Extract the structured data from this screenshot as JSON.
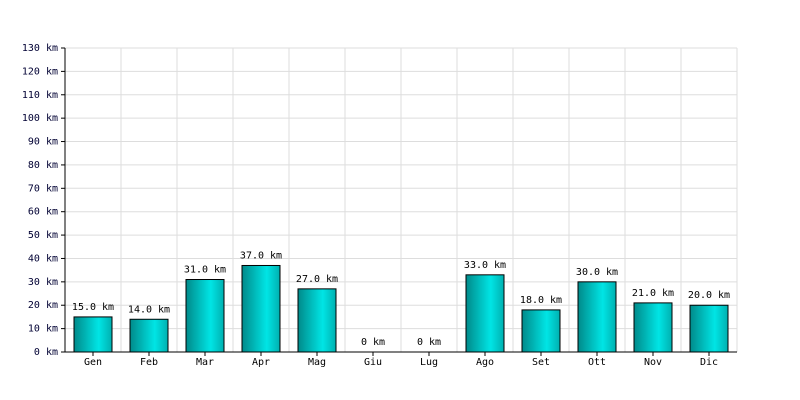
{
  "chart_data": {
    "type": "bar",
    "categories": [
      "Gen",
      "Feb",
      "Mar",
      "Apr",
      "Mag",
      "Giu",
      "Lug",
      "Ago",
      "Set",
      "Ott",
      "Nov",
      "Dic"
    ],
    "values": [
      15,
      14,
      31,
      37,
      27,
      0,
      0,
      33,
      18,
      30,
      21,
      20
    ],
    "value_labels": [
      "15.0 km",
      "14.0 km",
      "31.0 km",
      "37.0 km",
      "27.0 km",
      "0 km",
      "0 km",
      "33.0 km",
      "18.0 km",
      "30.0 km",
      "21.0 km",
      "20.0 km"
    ],
    "color": "#00e5e5",
    "ylim": [
      0,
      130
    ],
    "yticks": [
      {
        "value": 0,
        "label": "0 km"
      },
      {
        "value": 10,
        "label": "10 km"
      },
      {
        "value": 20,
        "label": "20 km"
      },
      {
        "value": 30,
        "label": "30 km"
      },
      {
        "value": 40,
        "label": "40 km"
      },
      {
        "value": 50,
        "label": "50 km"
      },
      {
        "value": 60,
        "label": "60 km"
      },
      {
        "value": 70,
        "label": "70 km"
      },
      {
        "value": 80,
        "label": "80 km"
      },
      {
        "value": 90,
        "label": "90 km"
      },
      {
        "value": 100,
        "label": "100 km"
      },
      {
        "value": 110,
        "label": "110 km"
      },
      {
        "value": 120,
        "label": "120 km"
      },
      {
        "value": 130,
        "label": "130 km"
      }
    ],
    "grid": true
  }
}
